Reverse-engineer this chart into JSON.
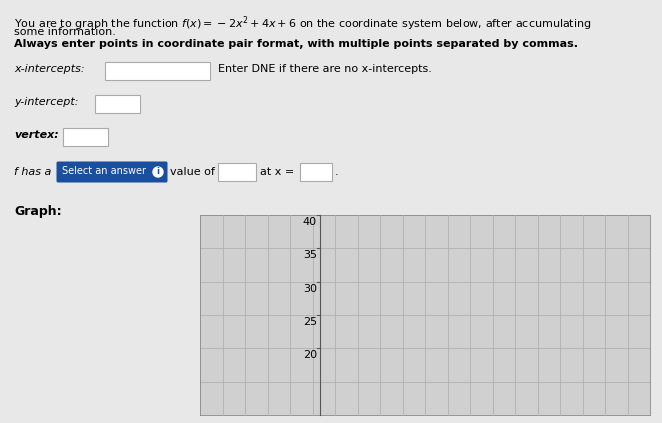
{
  "bg_color": "#e8e8e8",
  "text_color": "#000000",
  "box_face": "#ffffff",
  "box_edge": "#aaaaaa",
  "btn_color": "#1a4fa0",
  "btn_text_color": "#ffffff",
  "graph_face": "#d0d0d0",
  "graph_line_color": "#b0b0b0",
  "graph_yticks": [
    20,
    25,
    30,
    35,
    40
  ],
  "graph_ncols": 20,
  "graph_nrows": 6,
  "line1": "You are to graph the function $f(x) = -2x^2 + 4x + 6$ on the coordinate system below, after accumulating",
  "line2": "some information.",
  "line3": "Always enter points in coordinate pair format, with multiple points separated by commas.",
  "lbl_xint": "x-intercepts:",
  "lbl_xnote": "Enter DNE if there are no x-intercepts.",
  "lbl_yint": "y-intercept:",
  "lbl_vertex": "vertex:",
  "lbl_fhas": "f has a",
  "lbl_select": "Select an answer",
  "lbl_valueof": "value of",
  "lbl_atx": "at x =",
  "lbl_graph": "Graph:",
  "period": ".",
  "ymin": 15,
  "ymax": 43,
  "xmin": -10,
  "xmax": 10
}
